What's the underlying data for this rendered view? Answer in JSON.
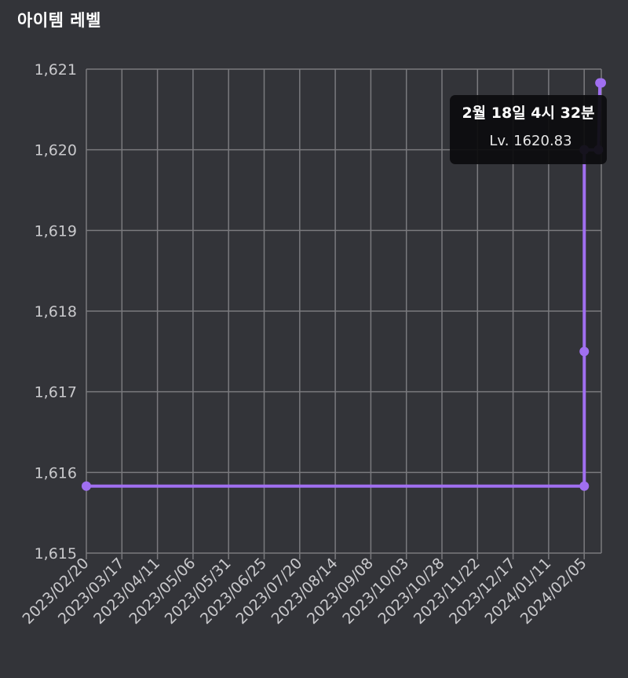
{
  "card": {
    "title": "아이템 레벨"
  },
  "tooltip": {
    "title": "2월 18일 4시 32분",
    "value_label": "Lv. 1620.83"
  },
  "colors": {
    "background": "#333439",
    "grid": "#7a7a7e",
    "line": "#a06ff0",
    "text": "#c9c9cc"
  },
  "chart_data": {
    "type": "line",
    "title": "아이템 레벨",
    "xlabel": "",
    "ylabel": "",
    "ylim": [
      1615,
      1621
    ],
    "xlim": [
      "2023-02-20",
      "2024-02-17"
    ],
    "grid": true,
    "y_ticks": [
      1615,
      1616,
      1617,
      1618,
      1619,
      1620,
      1621
    ],
    "y_tick_labels": [
      "1,615",
      "1,616",
      "1,617",
      "1,618",
      "1,619",
      "1,620",
      "1,621"
    ],
    "x_tick_labels": [
      "2023/02/20",
      "2023/03/17",
      "2023/04/11",
      "2023/05/06",
      "2023/05/31",
      "2023/06/25",
      "2023/07/20",
      "2023/08/14",
      "2023/09/08",
      "2023/10/03",
      "2023/10/28",
      "2023/11/22",
      "2023/12/17",
      "2024/01/11",
      "2024/02/05"
    ],
    "series": [
      {
        "points": [
          {
            "x": "2023-02-20",
            "y": 1615.83
          },
          {
            "x": "2024-02-05",
            "y": 1615.83
          },
          {
            "x": "2024-02-05",
            "y": 1617.5
          },
          {
            "x": "2024-02-05",
            "y": 1620.0
          },
          {
            "x": "2024-02-15",
            "y": 1620.0
          },
          {
            "x": "2024-02-16",
            "y": 1620.83
          },
          {
            "x": "2024-02-17",
            "y": 1620.83
          }
        ]
      }
    ]
  }
}
